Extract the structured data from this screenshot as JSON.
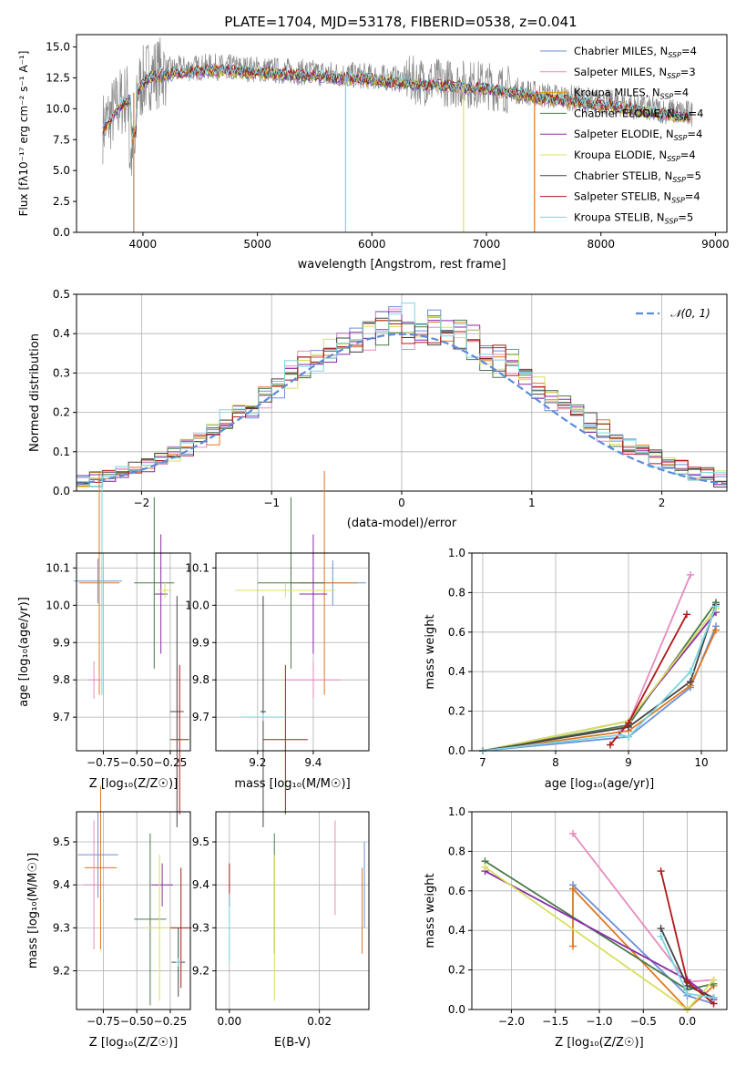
{
  "figure_title": "PLATE=1704, MJD=53178, FIBERID=0538, z=0.041",
  "colors": {
    "cm": "#6b8fd8",
    "sm": "#e58cc0",
    "km": "#d6a000",
    "ce": "#4a7a4a",
    "se": "#8a2aa8",
    "ke": "#d8e060",
    "cs": "#444444",
    "ss": "#b01818",
    "ks": "#7ad6e0",
    "gauss": "#5b8bd8",
    "orange": "#e07820",
    "teal": "#3aa0a0"
  },
  "chart_data": [
    {
      "id": "spectrum",
      "type": "line",
      "title": "PLATE=1704, MJD=53178, FIBERID=0538, z=0.041",
      "xlabel": "wavelength [Angstrom, rest frame]",
      "ylabel_html": "Flux [fλ10⁻¹⁷ erg cm⁻² s⁻¹ A⁻¹]",
      "xlim": [
        3420,
        9100
      ],
      "ylim": [
        0,
        16
      ],
      "xticks": [
        "4000",
        "5000",
        "6000",
        "7000",
        "8000",
        "9000"
      ],
      "yticks": [
        "0.0",
        "2.5",
        "5.0",
        "7.5",
        "10.0",
        "12.5",
        "15.0"
      ],
      "legend_position": "top-right",
      "legend": [
        {
          "label": "Chabrier MILES, N",
          "sub": "SSP",
          "tail": "=4",
          "color": "#6b8fd8"
        },
        {
          "label": "Salpeter MILES, N",
          "sub": "SSP",
          "tail": "=3",
          "color": "#e58cc0"
        },
        {
          "label": "Kroupa MILES, N",
          "sub": "SSP",
          "tail": "=4",
          "color": "#d6a000"
        },
        {
          "label": "Chabrier ELODIE, N",
          "sub": "SSP",
          "tail": "=4",
          "color": "#4a7a4a"
        },
        {
          "label": "Salpeter ELODIE, N",
          "sub": "SSP",
          "tail": "=4",
          "color": "#8a2aa8"
        },
        {
          "label": "Kroupa ELODIE, N",
          "sub": "SSP",
          "tail": "=4",
          "color": "#d8e060"
        },
        {
          "label": "Chabrier STELIB, N",
          "sub": "SSP",
          "tail": "=5",
          "color": "#444444"
        },
        {
          "label": "Salpeter STELIB, N",
          "sub": "SSP",
          "tail": "=4",
          "color": "#b01818"
        },
        {
          "label": "Kroupa STELIB, N",
          "sub": "SSP",
          "tail": "=5",
          "color": "#7ad6e0"
        }
      ],
      "envelope": [
        [
          3650,
          8.5
        ],
        [
          3800,
          10.5
        ],
        [
          3950,
          11.5
        ],
        [
          4050,
          12.8
        ],
        [
          4300,
          13.2
        ],
        [
          4600,
          13.4
        ],
        [
          5000,
          13.2
        ],
        [
          5500,
          12.9
        ],
        [
          6000,
          12.6
        ],
        [
          6500,
          12.2
        ],
        [
          7000,
          11.9
        ],
        [
          7500,
          11.1
        ],
        [
          8000,
          10.6
        ],
        [
          8500,
          9.9
        ],
        [
          8800,
          9.6
        ]
      ],
      "drops": [
        [
          3920,
          "#e07820"
        ],
        [
          5770,
          "#7ad6e0"
        ],
        [
          6800,
          "#d8e060"
        ],
        [
          7420,
          "#e07820"
        ]
      ]
    },
    {
      "id": "residuals",
      "type": "histogram",
      "xlabel": "(data-model)/error",
      "ylabel": "Normed distribution",
      "xlim": [
        -2.5,
        2.5
      ],
      "ylim": [
        0,
        0.5
      ],
      "xticks": [
        "−2",
        "−1",
        "0",
        "1",
        "2"
      ],
      "yticks": [
        "0.0",
        "0.1",
        "0.2",
        "0.3",
        "0.4",
        "0.5"
      ],
      "bin_width": 0.1,
      "legend": "𝒩(0, 1)",
      "gauss_sigma": 1.0
    },
    {
      "id": "age_vs_Z",
      "type": "errorbar",
      "xlabel": "Z [log₁₀(Z/Z☉)]",
      "ylabel": "age  [log₁₀(age/yr)]",
      "xlim": [
        -0.95,
        -0.1
      ],
      "ylim": [
        9.61,
        10.14
      ],
      "xticks": [
        {
          "v": -0.75,
          "t": "−0.75"
        },
        {
          "v": -0.5,
          "t": "−0.50"
        },
        {
          "v": -0.25,
          "t": "−0.25"
        }
      ],
      "yticks": [
        {
          "v": 9.7,
          "t": "9.7"
        },
        {
          "v": 9.8,
          "t": "9.8"
        },
        {
          "v": 9.9,
          "t": "9.9"
        },
        {
          "v": 10.0,
          "t": "10.0"
        },
        {
          "v": 10.1,
          "t": "10.1"
        }
      ],
      "points": [
        {
          "x": -0.79,
          "y": 10.065,
          "xe": 0.18,
          "ye": 0.06,
          "c": "#6b8fd8"
        },
        {
          "x": -0.78,
          "y": 10.06,
          "xe": 0.15,
          "ye": 0.3,
          "c": "#e07820"
        },
        {
          "x": -0.82,
          "y": 9.8,
          "xe": 0.05,
          "ye": 0.05,
          "c": "#e58cc0"
        },
        {
          "x": -0.37,
          "y": 10.06,
          "xe": 0.15,
          "ye": 0.23,
          "c": "#4a7a4a"
        },
        {
          "x": -0.32,
          "y": 10.03,
          "xe": 0.05,
          "ye": 0.16,
          "c": "#8a2aa8"
        },
        {
          "x": -0.29,
          "y": 10.04,
          "xe": 0.05,
          "ye": 0.02,
          "c": "#d8e060"
        },
        {
          "x": -0.2,
          "y": 9.715,
          "xe": 0.05,
          "ye": 0.31,
          "c": "#444444"
        },
        {
          "x": -0.18,
          "y": 9.64,
          "xe": 0.07,
          "ye": 0.2,
          "c": "#b01818"
        },
        {
          "x": -0.76,
          "y": 10.06,
          "xe": 0.01,
          "ye": 0.3,
          "c": "#7ad6e0"
        }
      ]
    },
    {
      "id": "age_vs_mass",
      "type": "errorbar",
      "xlabel": "mass [log₁₀(M/M☉)]",
      "ylabel": "",
      "xlim": [
        9.05,
        9.6
      ],
      "ylim": [
        9.61,
        10.14
      ],
      "xticks": [
        {
          "v": 9.2,
          "t": "9.2"
        },
        {
          "v": 9.4,
          "t": "9.4"
        }
      ],
      "yticks": [
        {
          "v": 9.7,
          "t": "9.7"
        },
        {
          "v": 9.8,
          "t": "9.8"
        },
        {
          "v": 9.9,
          "t": "9.9"
        },
        {
          "v": 10.0,
          "t": "10.0"
        },
        {
          "v": 10.1,
          "t": "10.1"
        }
      ],
      "points": [
        {
          "x": 9.47,
          "y": 10.06,
          "xe": 0.12,
          "ye": 0.06,
          "c": "#6b8fd8"
        },
        {
          "x": 9.44,
          "y": 10.06,
          "xe": 0.12,
          "ye": 0.3,
          "c": "#e07820"
        },
        {
          "x": 9.4,
          "y": 9.8,
          "xe": 0.1,
          "ye": 0.05,
          "c": "#e58cc0"
        },
        {
          "x": 9.32,
          "y": 10.06,
          "xe": 0.12,
          "ye": 0.23,
          "c": "#4a7a4a"
        },
        {
          "x": 9.4,
          "y": 10.03,
          "xe": 0.05,
          "ye": 0.16,
          "c": "#8a2aa8"
        },
        {
          "x": 9.3,
          "y": 10.04,
          "xe": 0.18,
          "ye": 0.02,
          "c": "#d8e060"
        },
        {
          "x": 9.22,
          "y": 9.715,
          "xe": 0.01,
          "ye": 0.31,
          "c": "#444444"
        },
        {
          "x": 9.3,
          "y": 9.64,
          "xe": 0.08,
          "ye": 0.2,
          "c": "#b01818"
        },
        {
          "x": 9.22,
          "y": 9.7,
          "xe": 0.08,
          "ye": 0.01,
          "c": "#7ad6e0"
        }
      ]
    },
    {
      "id": "mw_vs_age",
      "type": "line",
      "xlabel": "age  [log₁₀(age/yr)]",
      "ylabel": "mass weight",
      "xlim": [
        6.85,
        10.35
      ],
      "ylim": [
        0,
        1
      ],
      "xticks": [
        {
          "v": 7,
          "t": "7"
        },
        {
          "v": 8,
          "t": "8"
        },
        {
          "v": 9,
          "t": "9"
        },
        {
          "v": 10,
          "t": "10"
        }
      ],
      "yticks": [
        {
          "v": 0,
          "t": "0.0"
        },
        {
          "v": 0.2,
          "t": "0.2"
        },
        {
          "v": 0.4,
          "t": "0.4"
        },
        {
          "v": 0.6,
          "t": "0.6"
        },
        {
          "v": 0.8,
          "t": "0.8"
        },
        {
          "v": 1.0,
          "t": "1.0"
        }
      ],
      "series": [
        {
          "c": "#6b8fd8",
          "x": [
            7.0,
            9.0,
            9.85,
            10.2
          ],
          "y": [
            0.0,
            0.07,
            0.32,
            0.63
          ]
        },
        {
          "c": "#e07820",
          "x": [
            7.0,
            9.0,
            9.85,
            10.2
          ],
          "y": [
            0.0,
            0.1,
            0.33,
            0.61
          ]
        },
        {
          "c": "#e58cc0",
          "x": [
            8.9,
            9.0,
            9.85
          ],
          "y": [
            0.1,
            0.14,
            0.89
          ]
        },
        {
          "c": "#4a7a4a",
          "x": [
            7.0,
            9.0,
            10.2
          ],
          "y": [
            0.0,
            0.13,
            0.75
          ]
        },
        {
          "c": "#8a2aa8",
          "x": [
            7.0,
            9.0,
            10.2
          ],
          "y": [
            0.0,
            0.15,
            0.7
          ]
        },
        {
          "c": "#d8e060",
          "x": [
            7.0,
            9.0,
            10.2
          ],
          "y": [
            0.0,
            0.15,
            0.72
          ]
        },
        {
          "c": "#444444",
          "x": [
            7.0,
            9.0,
            9.85,
            10.2
          ],
          "y": [
            0.0,
            0.12,
            0.35,
            0.74
          ]
        },
        {
          "c": "#b01818",
          "x": [
            8.75,
            9.0,
            9.8
          ],
          "y": [
            0.03,
            0.14,
            0.69
          ]
        },
        {
          "c": "#7ad6e0",
          "x": [
            7.0,
            8.9,
            9.0,
            9.85,
            10.2
          ],
          "y": [
            0.0,
            0.08,
            0.07,
            0.4,
            0.73
          ]
        }
      ]
    },
    {
      "id": "mass_vs_Z",
      "type": "errorbar",
      "xlabel": "Z [log₁₀(Z/Z☉)]",
      "ylabel": "mass [log₁₀(M/M☉)]",
      "xlim": [
        -0.95,
        -0.1
      ],
      "ylim": [
        9.11,
        9.57
      ],
      "xticks": [
        {
          "v": -0.75,
          "t": "−0.75"
        },
        {
          "v": -0.5,
          "t": "−0.50"
        },
        {
          "v": -0.25,
          "t": "−0.25"
        }
      ],
      "yticks": [
        {
          "v": 9.2,
          "t": "9.2"
        },
        {
          "v": 9.3,
          "t": "9.3"
        },
        {
          "v": 9.4,
          "t": "9.4"
        },
        {
          "v": 9.5,
          "t": "9.5"
        }
      ],
      "points": [
        {
          "x": -0.79,
          "y": 9.47,
          "xe": 0.15,
          "ye": 0.1,
          "c": "#6b8fd8"
        },
        {
          "x": -0.77,
          "y": 9.44,
          "xe": 0.12,
          "ye": 0.19,
          "c": "#e07820"
        },
        {
          "x": -0.82,
          "y": 9.4,
          "xe": 0.08,
          "ye": 0.15,
          "c": "#e58cc0"
        },
        {
          "x": -0.4,
          "y": 9.32,
          "xe": 0.12,
          "ye": 0.2,
          "c": "#4a7a4a"
        },
        {
          "x": -0.31,
          "y": 9.4,
          "xe": 0.08,
          "ye": 0.05,
          "c": "#8a2aa8"
        },
        {
          "x": -0.33,
          "y": 9.3,
          "xe": 0.12,
          "ye": 0.17,
          "c": "#d8e060"
        },
        {
          "x": -0.19,
          "y": 9.22,
          "xe": 0.05,
          "ye": 0.08,
          "c": "#444444"
        },
        {
          "x": -0.17,
          "y": 9.3,
          "xe": 0.08,
          "ye": 0.14,
          "c": "#b01818"
        },
        {
          "x": -0.19,
          "y": 9.22,
          "xe": 0.02,
          "ye": 0.01,
          "c": "#7ad6e0"
        }
      ]
    },
    {
      "id": "mass_vs_ebv",
      "type": "errorbar",
      "xlabel": "E(B-V)",
      "ylabel": "",
      "xlim": [
        -0.003,
        0.031
      ],
      "ylim": [
        9.11,
        9.57
      ],
      "xticks": [
        {
          "v": 0.0,
          "t": "0.00"
        },
        {
          "v": 0.02,
          "t": "0.02"
        }
      ],
      "yticks": [
        {
          "v": 9.2,
          "t": "9.2"
        },
        {
          "v": 9.3,
          "t": "9.3"
        },
        {
          "v": 9.4,
          "t": "9.4"
        },
        {
          "v": 9.5,
          "t": "9.5"
        }
      ],
      "points": [
        {
          "x": 0.0,
          "y": 9.4,
          "xe": 0,
          "ye": 0.05,
          "c": "#b01818"
        },
        {
          "x": 0.0,
          "y": 9.3,
          "xe": 0,
          "ye": 0.08,
          "c": "#7ad6e0"
        },
        {
          "x": 0.01,
          "y": 9.38,
          "xe": 0,
          "ye": 0.14,
          "c": "#4a7a4a"
        },
        {
          "x": 0.01,
          "y": 9.3,
          "xe": 0,
          "ye": 0.17,
          "c": "#d8e060"
        },
        {
          "x": 0.0235,
          "y": 9.44,
          "xe": 0,
          "ye": 0.11,
          "c": "#e58cc0"
        },
        {
          "x": 0.03,
          "y": 9.4,
          "xe": 0,
          "ye": 0.1,
          "c": "#6b8fd8"
        },
        {
          "x": 0.0295,
          "y": 9.34,
          "xe": 0,
          "ye": 0.1,
          "c": "#e07820"
        }
      ]
    },
    {
      "id": "mw_vs_Z",
      "type": "line",
      "xlabel": "Z [log₁₀(Z/Z☉)]",
      "ylabel": "mass weight",
      "xlim": [
        -2.45,
        0.45
      ],
      "ylim": [
        0,
        1
      ],
      "xticks": [
        {
          "v": -2.0,
          "t": "−2.0"
        },
        {
          "v": -1.5,
          "t": "−1.5"
        },
        {
          "v": -1.0,
          "t": "−1.0"
        },
        {
          "v": -0.5,
          "t": "−0.5"
        },
        {
          "v": 0.0,
          "t": "0.0"
        }
      ],
      "yticks": [
        {
          "v": 0,
          "t": "0.0"
        },
        {
          "v": 0.2,
          "t": "0.2"
        },
        {
          "v": 0.4,
          "t": "0.4"
        },
        {
          "v": 0.6,
          "t": "0.6"
        },
        {
          "v": 0.8,
          "t": "0.8"
        },
        {
          "v": 1.0,
          "t": "1.0"
        }
      ],
      "series": [
        {
          "c": "#6b8fd8",
          "x": [
            -1.3,
            0.0,
            0.3
          ],
          "y": [
            0.63,
            0.07,
            0.03
          ]
        },
        {
          "c": "#e07820",
          "x": [
            -1.3,
            -1.3,
            0.0,
            0.3
          ],
          "y": [
            0.32,
            0.61,
            0.0,
            0.12
          ]
        },
        {
          "c": "#e58cc0",
          "x": [
            -1.3,
            0.0,
            0.3
          ],
          "y": [
            0.89,
            0.14,
            0.15
          ]
        },
        {
          "c": "#4a7a4a",
          "x": [
            -2.3,
            0.0,
            0.3
          ],
          "y": [
            0.75,
            0.1,
            0.13
          ]
        },
        {
          "c": "#8a2aa8",
          "x": [
            -2.3,
            0.0,
            0.3
          ],
          "y": [
            0.7,
            0.15,
            0.05
          ]
        },
        {
          "c": "#d8e060",
          "x": [
            -2.3,
            0.0,
            0.3
          ],
          "y": [
            0.72,
            0.0,
            0.15
          ]
        },
        {
          "c": "#444444",
          "x": [
            -0.3,
            0.0,
            0.3
          ],
          "y": [
            0.41,
            0.12,
            0.06
          ]
        },
        {
          "c": "#b01818",
          "x": [
            -0.3,
            0.0,
            0.3
          ],
          "y": [
            0.7,
            0.14,
            0.03
          ]
        },
        {
          "c": "#7ad6e0",
          "x": [
            -0.3,
            0.0,
            0.3
          ],
          "y": [
            0.37,
            0.08,
            0.06
          ]
        }
      ]
    }
  ]
}
